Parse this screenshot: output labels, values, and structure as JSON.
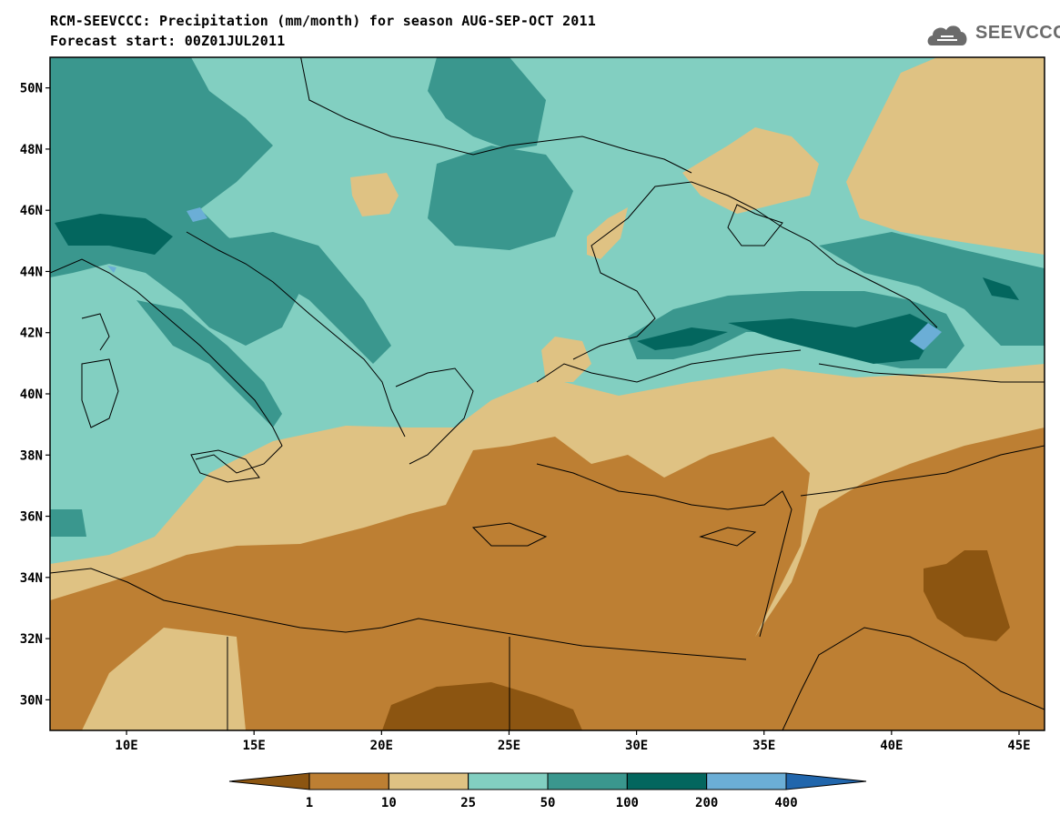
{
  "header": {
    "title_line1": "RCM-SEEVCCC: Precipitation (mm/month) for season AUG-SEP-OCT 2011",
    "title_line2": "Forecast start: 00Z01JUL2011",
    "logo_text": "SEEVCCC",
    "logo_icon": "cloud-icon"
  },
  "map": {
    "lon_range": [
      7,
      46
    ],
    "lat_range": [
      29,
      51
    ],
    "lat_ticks": [
      {
        "value": 50,
        "label": "50N"
      },
      {
        "value": 48,
        "label": "48N"
      },
      {
        "value": 46,
        "label": "46N"
      },
      {
        "value": 44,
        "label": "44N"
      },
      {
        "value": 42,
        "label": "42N"
      },
      {
        "value": 40,
        "label": "40N"
      },
      {
        "value": 38,
        "label": "38N"
      },
      {
        "value": 36,
        "label": "36N"
      },
      {
        "value": 34,
        "label": "34N"
      },
      {
        "value": 32,
        "label": "32N"
      },
      {
        "value": 30,
        "label": "30N"
      }
    ],
    "lon_ticks": [
      {
        "value": 10,
        "label": "10E"
      },
      {
        "value": 15,
        "label": "15E"
      },
      {
        "value": 20,
        "label": "20E"
      },
      {
        "value": 25,
        "label": "25E"
      },
      {
        "value": 30,
        "label": "30E"
      },
      {
        "value": 35,
        "label": "35E"
      },
      {
        "value": 40,
        "label": "40E"
      },
      {
        "value": 45,
        "label": "45E"
      }
    ]
  },
  "colorbar": {
    "colors": [
      "#8c5511",
      "#bd7f33",
      "#dfc283",
      "#82cfc1",
      "#3a978e",
      "#03665e",
      "#6baed6",
      "#2166ac"
    ],
    "labels": [
      "1",
      "10",
      "25",
      "50",
      "100",
      "200",
      "400"
    ]
  }
}
